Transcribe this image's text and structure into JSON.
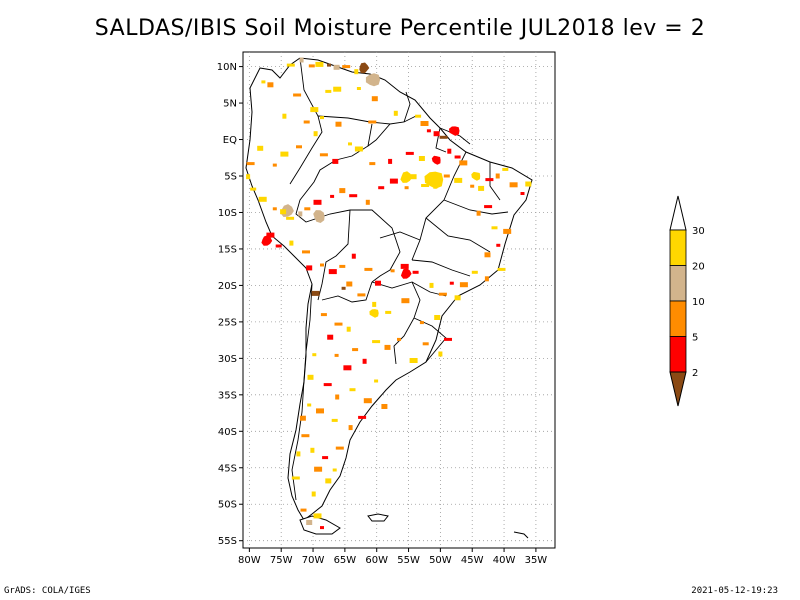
{
  "title": "SALDAS/IBIS Soil Moisture Percentile JUL2018 lev = 2",
  "footer": {
    "left": "GrADS: COLA/IGES",
    "right": "2021-05-12-19:23"
  },
  "map": {
    "lon_range": [
      -81,
      -32
    ],
    "lat_range": [
      -56,
      12
    ],
    "x_ticks": [
      {
        "lon": -80,
        "label": "80W"
      },
      {
        "lon": -75,
        "label": "75W"
      },
      {
        "lon": -70,
        "label": "70W"
      },
      {
        "lon": -65,
        "label": "65W"
      },
      {
        "lon": -60,
        "label": "60W"
      },
      {
        "lon": -55,
        "label": "55W"
      },
      {
        "lon": -50,
        "label": "50W"
      },
      {
        "lon": -45,
        "label": "45W"
      },
      {
        "lon": -40,
        "label": "40W"
      },
      {
        "lon": -35,
        "label": "35W"
      }
    ],
    "y_ticks": [
      {
        "lat": 10,
        "label": "10N"
      },
      {
        "lat": 5,
        "label": "5N"
      },
      {
        "lat": 0,
        "label": "EQ"
      },
      {
        "lat": -5,
        "label": "5S"
      },
      {
        "lat": -10,
        "label": "10S"
      },
      {
        "lat": -15,
        "label": "15S"
      },
      {
        "lat": -20,
        "label": "20S"
      },
      {
        "lat": -25,
        "label": "25S"
      },
      {
        "lat": -30,
        "label": "30S"
      },
      {
        "lat": -35,
        "label": "35S"
      },
      {
        "lat": -40,
        "label": "40S"
      },
      {
        "lat": -45,
        "label": "45S"
      },
      {
        "lat": -50,
        "label": "50S"
      },
      {
        "lat": -55,
        "label": "55S"
      }
    ],
    "grid": "dotted"
  },
  "colors": {
    "lt2": "#8b4a14",
    "2to5": "#ff0000",
    "5to10": "#ff8c00",
    "10to20": "#d2b48c",
    "20to30": "#ffd700"
  },
  "colorbar": {
    "labels": [
      "30",
      "20",
      "10",
      "5",
      "2"
    ],
    "bins": [
      "#ffd700",
      "#d2b48c",
      "#ff8c00",
      "#ff0000"
    ],
    "low_color": "#8b4a14",
    "high_color": "#ffffff"
  },
  "anomalies": [
    {
      "lon": -77.8,
      "lat": 7.9,
      "c": "#ffd700"
    },
    {
      "lon": -76.7,
      "lat": 7.5,
      "c": "#ff8c00"
    },
    {
      "lon": -73.5,
      "lat": 10.2,
      "c": "#ffd700"
    },
    {
      "lon": -71.8,
      "lat": 10.9,
      "c": "#d2b48c"
    },
    {
      "lon": -70.2,
      "lat": 10.1,
      "c": "#ff8c00"
    },
    {
      "lon": -69.0,
      "lat": 10.3,
      "c": "#ffd700"
    },
    {
      "lon": -67.5,
      "lat": 10.2,
      "c": "#8b4a14"
    },
    {
      "lon": -66.3,
      "lat": 9.9,
      "c": "#d2b48c"
    },
    {
      "lon": -64.8,
      "lat": 10.0,
      "c": "#ff8c00"
    },
    {
      "lon": -63.2,
      "lat": 9.3,
      "c": "#ffd700"
    },
    {
      "lon": -67.6,
      "lat": 6.6,
      "c": "#ffd700"
    },
    {
      "lon": -66.2,
      "lat": 6.9,
      "c": "#ffd700"
    },
    {
      "lon": -62.8,
      "lat": 7.0,
      "c": "#ffd700"
    },
    {
      "lon": -60.3,
      "lat": 5.6,
      "c": "#ff8c00"
    },
    {
      "lon": -72.5,
      "lat": 6.1,
      "c": "#ff8c00"
    },
    {
      "lon": -74.5,
      "lat": 3.2,
      "c": "#ffd700"
    },
    {
      "lon": -71.0,
      "lat": 2.4,
      "c": "#ff8c00"
    },
    {
      "lon": -69.8,
      "lat": 4.1,
      "c": "#ffd700"
    },
    {
      "lon": -68.6,
      "lat": 3.0,
      "c": "#ffd700"
    },
    {
      "lon": -66.0,
      "lat": 2.1,
      "c": "#ff8c00"
    },
    {
      "lon": -60.7,
      "lat": 2.4,
      "c": "#ff8c00"
    },
    {
      "lon": -57.0,
      "lat": 3.6,
      "c": "#ffd700"
    },
    {
      "lon": -53.5,
      "lat": 3.2,
      "c": "#ffd700"
    },
    {
      "lon": -52.5,
      "lat": 2.2,
      "c": "#ff8c00"
    },
    {
      "lon": -51.8,
      "lat": 1.2,
      "c": "#ff0000"
    },
    {
      "lon": -50.6,
      "lat": 0.8,
      "c": "#ff0000"
    },
    {
      "lon": -49.5,
      "lat": 0.3,
      "c": "#8b4a14"
    },
    {
      "lon": -48.6,
      "lat": -1.6,
      "c": "#ff0000"
    },
    {
      "lon": -47.3,
      "lat": -2.4,
      "c": "#ff0000"
    },
    {
      "lon": -46.4,
      "lat": -3.2,
      "c": "#ff8c00"
    },
    {
      "lon": -50.8,
      "lat": -2.5,
      "c": "#ff0000"
    },
    {
      "lon": -52.9,
      "lat": -2.6,
      "c": "#ffd700"
    },
    {
      "lon": -54.8,
      "lat": -1.9,
      "c": "#ff0000"
    },
    {
      "lon": -57.9,
      "lat": -3.0,
      "c": "#ff0000"
    },
    {
      "lon": -60.7,
      "lat": -3.3,
      "c": "#ff8c00"
    },
    {
      "lon": -62.8,
      "lat": -1.3,
      "c": "#ffd700"
    },
    {
      "lon": -64.2,
      "lat": -0.6,
      "c": "#ffd700"
    },
    {
      "lon": -66.5,
      "lat": -3.0,
      "c": "#ff0000"
    },
    {
      "lon": -68.3,
      "lat": -2.1,
      "c": "#ff8c00"
    },
    {
      "lon": -69.6,
      "lat": 0.8,
      "c": "#ffd700"
    },
    {
      "lon": -72.2,
      "lat": -1.0,
      "c": "#ff8c00"
    },
    {
      "lon": -74.5,
      "lat": -2.0,
      "c": "#ffd700"
    },
    {
      "lon": -76.0,
      "lat": -3.5,
      "c": "#ff8c00"
    },
    {
      "lon": -78.3,
      "lat": -1.2,
      "c": "#ffd700"
    },
    {
      "lon": -79.8,
      "lat": -3.3,
      "c": "#ff8c00"
    },
    {
      "lon": -80.2,
      "lat": -5.1,
      "c": "#ffd700"
    },
    {
      "lon": -79.4,
      "lat": -6.8,
      "c": "#ffd700"
    },
    {
      "lon": -77.9,
      "lat": -8.2,
      "c": "#ffd700"
    },
    {
      "lon": -76.0,
      "lat": -9.5,
      "c": "#ff8c00"
    },
    {
      "lon": -74.7,
      "lat": -9.9,
      "c": "#ffd700"
    },
    {
      "lon": -73.6,
      "lat": -10.8,
      "c": "#ffd700"
    },
    {
      "lon": -72.0,
      "lat": -10.2,
      "c": "#d2b48c"
    },
    {
      "lon": -70.9,
      "lat": -9.5,
      "c": "#ff8c00"
    },
    {
      "lon": -69.3,
      "lat": -8.6,
      "c": "#ff0000"
    },
    {
      "lon": -67.0,
      "lat": -7.8,
      "c": "#ff0000"
    },
    {
      "lon": -65.4,
      "lat": -7.0,
      "c": "#ff8c00"
    },
    {
      "lon": -63.7,
      "lat": -7.7,
      "c": "#ff0000"
    },
    {
      "lon": -61.4,
      "lat": -8.6,
      "c": "#ff8c00"
    },
    {
      "lon": -59.3,
      "lat": -6.6,
      "c": "#ff0000"
    },
    {
      "lon": -57.3,
      "lat": -5.7,
      "c": "#ff0000"
    },
    {
      "lon": -55.3,
      "lat": -6.6,
      "c": "#ff8c00"
    },
    {
      "lon": -54.2,
      "lat": -5.1,
      "c": "#ffd700"
    },
    {
      "lon": -52.4,
      "lat": -6.3,
      "c": "#ffd700"
    },
    {
      "lon": -50.8,
      "lat": -6.4,
      "c": "#ffd700"
    },
    {
      "lon": -49.0,
      "lat": -5.0,
      "c": "#ff8c00"
    },
    {
      "lon": -47.2,
      "lat": -5.6,
      "c": "#ffd700"
    },
    {
      "lon": -45.0,
      "lat": -6.4,
      "c": "#ff8c00"
    },
    {
      "lon": -43.6,
      "lat": -6.7,
      "c": "#ffd700"
    },
    {
      "lon": -42.3,
      "lat": -5.5,
      "c": "#ff0000"
    },
    {
      "lon": -41.0,
      "lat": -5.0,
      "c": "#ff8c00"
    },
    {
      "lon": -39.8,
      "lat": -4.1,
      "c": "#ffd700"
    },
    {
      "lon": -38.5,
      "lat": -6.2,
      "c": "#ff8c00"
    },
    {
      "lon": -37.1,
      "lat": -7.4,
      "c": "#ff0000"
    },
    {
      "lon": -36.2,
      "lat": -6.1,
      "c": "#ffd700"
    },
    {
      "lon": -42.5,
      "lat": -9.2,
      "c": "#ff0000"
    },
    {
      "lon": -44.0,
      "lat": -10.1,
      "c": "#ff8c00"
    },
    {
      "lon": -41.5,
      "lat": -12.1,
      "c": "#ffd700"
    },
    {
      "lon": -39.5,
      "lat": -12.6,
      "c": "#ff8c00"
    },
    {
      "lon": -40.9,
      "lat": -14.5,
      "c": "#ff0000"
    },
    {
      "lon": -42.6,
      "lat": -15.8,
      "c": "#ff8c00"
    },
    {
      "lon": -40.4,
      "lat": -17.8,
      "c": "#ffd700"
    },
    {
      "lon": -42.7,
      "lat": -19.1,
      "c": "#ff8c00"
    },
    {
      "lon": -44.6,
      "lat": -18.2,
      "c": "#ffd700"
    },
    {
      "lon": -46.3,
      "lat": -19.9,
      "c": "#ff8c00"
    },
    {
      "lon": -48.2,
      "lat": -19.7,
      "c": "#ff0000"
    },
    {
      "lon": -47.3,
      "lat": -21.7,
      "c": "#ffd700"
    },
    {
      "lon": -49.6,
      "lat": -21.2,
      "c": "#ff8c00"
    },
    {
      "lon": -51.4,
      "lat": -20.0,
      "c": "#ffd700"
    },
    {
      "lon": -53.9,
      "lat": -18.2,
      "c": "#ff0000"
    },
    {
      "lon": -55.6,
      "lat": -17.4,
      "c": "#ff0000"
    },
    {
      "lon": -57.5,
      "lat": -18.0,
      "c": "#ff8c00"
    },
    {
      "lon": -59.8,
      "lat": -19.7,
      "c": "#ff0000"
    },
    {
      "lon": -61.3,
      "lat": -17.8,
      "c": "#ff8c00"
    },
    {
      "lon": -63.6,
      "lat": -16.0,
      "c": "#ff0000"
    },
    {
      "lon": -65.4,
      "lat": -17.4,
      "c": "#ff8c00"
    },
    {
      "lon": -66.9,
      "lat": -18.1,
      "c": "#ff0000"
    },
    {
      "lon": -68.6,
      "lat": -17.2,
      "c": "#ff8c00"
    },
    {
      "lon": -70.6,
      "lat": -17.6,
      "c": "#ff0000"
    },
    {
      "lon": -71.1,
      "lat": -15.4,
      "c": "#ff8c00"
    },
    {
      "lon": -73.4,
      "lat": -14.2,
      "c": "#ffd700"
    },
    {
      "lon": -75.4,
      "lat": -14.6,
      "c": "#ff0000"
    },
    {
      "lon": -76.7,
      "lat": -13.1,
      "c": "#ff0000"
    },
    {
      "lon": -65.2,
      "lat": -20.4,
      "c": "#8b4a14"
    },
    {
      "lon": -64.3,
      "lat": -19.8,
      "c": "#ff8c00"
    },
    {
      "lon": -62.4,
      "lat": -21.3,
      "c": "#ff8c00"
    },
    {
      "lon": -60.4,
      "lat": -22.6,
      "c": "#ffd700"
    },
    {
      "lon": -58.2,
      "lat": -23.7,
      "c": "#ffd700"
    },
    {
      "lon": -55.5,
      "lat": -22.1,
      "c": "#ff8c00"
    },
    {
      "lon": -52.9,
      "lat": -25.1,
      "c": "#ff8c00"
    },
    {
      "lon": -50.5,
      "lat": -24.4,
      "c": "#ffd700"
    },
    {
      "lon": -48.8,
      "lat": -27.4,
      "c": "#ff0000"
    },
    {
      "lon": -50.0,
      "lat": -29.4,
      "c": "#ffd700"
    },
    {
      "lon": -52.3,
      "lat": -28.0,
      "c": "#ff8c00"
    },
    {
      "lon": -54.2,
      "lat": -30.3,
      "c": "#ffd700"
    },
    {
      "lon": -56.5,
      "lat": -27.4,
      "c": "#ff8c00"
    },
    {
      "lon": -58.3,
      "lat": -28.5,
      "c": "#ff8c00"
    },
    {
      "lon": -60.1,
      "lat": -27.7,
      "c": "#ffd700"
    },
    {
      "lon": -61.9,
      "lat": -30.4,
      "c": "#ff0000"
    },
    {
      "lon": -63.4,
      "lat": -28.8,
      "c": "#ff8c00"
    },
    {
      "lon": -64.6,
      "lat": -31.3,
      "c": "#ff0000"
    },
    {
      "lon": -66.3,
      "lat": -29.6,
      "c": "#ff8c00"
    },
    {
      "lon": -67.3,
      "lat": -27.1,
      "c": "#ff0000"
    },
    {
      "lon": -66.0,
      "lat": -25.3,
      "c": "#ff8c00"
    },
    {
      "lon": -64.4,
      "lat": -26.0,
      "c": "#ffd700"
    },
    {
      "lon": -68.3,
      "lat": -24.0,
      "c": "#ff8c00"
    },
    {
      "lon": -69.6,
      "lat": -21.1,
      "c": "#8b4a14"
    },
    {
      "lon": -69.8,
      "lat": -29.5,
      "c": "#ffd700"
    },
    {
      "lon": -70.4,
      "lat": -32.6,
      "c": "#ffd700"
    },
    {
      "lon": -67.7,
      "lat": -33.6,
      "c": "#ff0000"
    },
    {
      "lon": -66.2,
      "lat": -35.3,
      "c": "#ff8c00"
    },
    {
      "lon": -63.8,
      "lat": -34.3,
      "c": "#ffd700"
    },
    {
      "lon": -61.4,
      "lat": -35.8,
      "c": "#ff8c00"
    },
    {
      "lon": -60.1,
      "lat": -33.1,
      "c": "#ffd700"
    },
    {
      "lon": -58.8,
      "lat": -36.6,
      "c": "#ff8c00"
    },
    {
      "lon": -62.3,
      "lat": -38.1,
      "c": "#ff0000"
    },
    {
      "lon": -64.1,
      "lat": -39.5,
      "c": "#ff8c00"
    },
    {
      "lon": -66.6,
      "lat": -38.5,
      "c": "#ffd700"
    },
    {
      "lon": -68.9,
      "lat": -37.2,
      "c": "#ff8c00"
    },
    {
      "lon": -70.6,
      "lat": -36.4,
      "c": "#ffd700"
    },
    {
      "lon": -71.6,
      "lat": -38.2,
      "c": "#ff8c00"
    },
    {
      "lon": -71.2,
      "lat": -40.6,
      "c": "#ff8c00"
    },
    {
      "lon": -70.1,
      "lat": -42.6,
      "c": "#ffd700"
    },
    {
      "lon": -68.1,
      "lat": -43.6,
      "c": "#ff0000"
    },
    {
      "lon": -69.2,
      "lat": -45.2,
      "c": "#ff8c00"
    },
    {
      "lon": -66.6,
      "lat": -45.3,
      "c": "#ffd700"
    },
    {
      "lon": -67.6,
      "lat": -46.8,
      "c": "#ffd700"
    },
    {
      "lon": -65.8,
      "lat": -42.3,
      "c": "#ff8c00"
    },
    {
      "lon": -69.9,
      "lat": -48.6,
      "c": "#ffd700"
    },
    {
      "lon": -71.5,
      "lat": -50.8,
      "c": "#ff8c00"
    },
    {
      "lon": -69.3,
      "lat": -51.6,
      "c": "#ffd700"
    },
    {
      "lon": -68.6,
      "lat": -53.2,
      "c": "#ff0000"
    },
    {
      "lon": -70.6,
      "lat": -52.5,
      "c": "#d2b48c"
    },
    {
      "lon": -72.7,
      "lat": -46.4,
      "c": "#ffd700"
    },
    {
      "lon": -72.3,
      "lat": -43.1,
      "c": "#ffd700"
    }
  ],
  "large_patches": [
    {
      "lon": -51.0,
      "lat": -5.5,
      "c": "#ffd700",
      "r": 1.6
    },
    {
      "lon": -60.6,
      "lat": 8.2,
      "c": "#d2b48c",
      "r": 1.2
    },
    {
      "lon": -62.0,
      "lat": 9.8,
      "c": "#8b4a14",
      "r": 0.9
    },
    {
      "lon": -74.1,
      "lat": -9.8,
      "c": "#d2b48c",
      "r": 1.1
    },
    {
      "lon": -69.0,
      "lat": -10.5,
      "c": "#d2b48c",
      "r": 1.1
    },
    {
      "lon": -77.3,
      "lat": -13.9,
      "c": "#ff0000",
      "r": 0.9
    },
    {
      "lon": -55.4,
      "lat": -18.4,
      "c": "#ff0000",
      "r": 0.9
    },
    {
      "lon": -60.4,
      "lat": -23.8,
      "c": "#ffd700",
      "r": 0.8
    },
    {
      "lon": -47.8,
      "lat": 1.2,
      "c": "#ff0000",
      "r": 0.9
    },
    {
      "lon": -50.6,
      "lat": -2.8,
      "c": "#ff0000",
      "r": 0.8
    },
    {
      "lon": -55.4,
      "lat": -5.2,
      "c": "#ffd700",
      "r": 1.0
    },
    {
      "lon": -44.4,
      "lat": -5.0,
      "c": "#ffd700",
      "r": 0.8
    }
  ]
}
